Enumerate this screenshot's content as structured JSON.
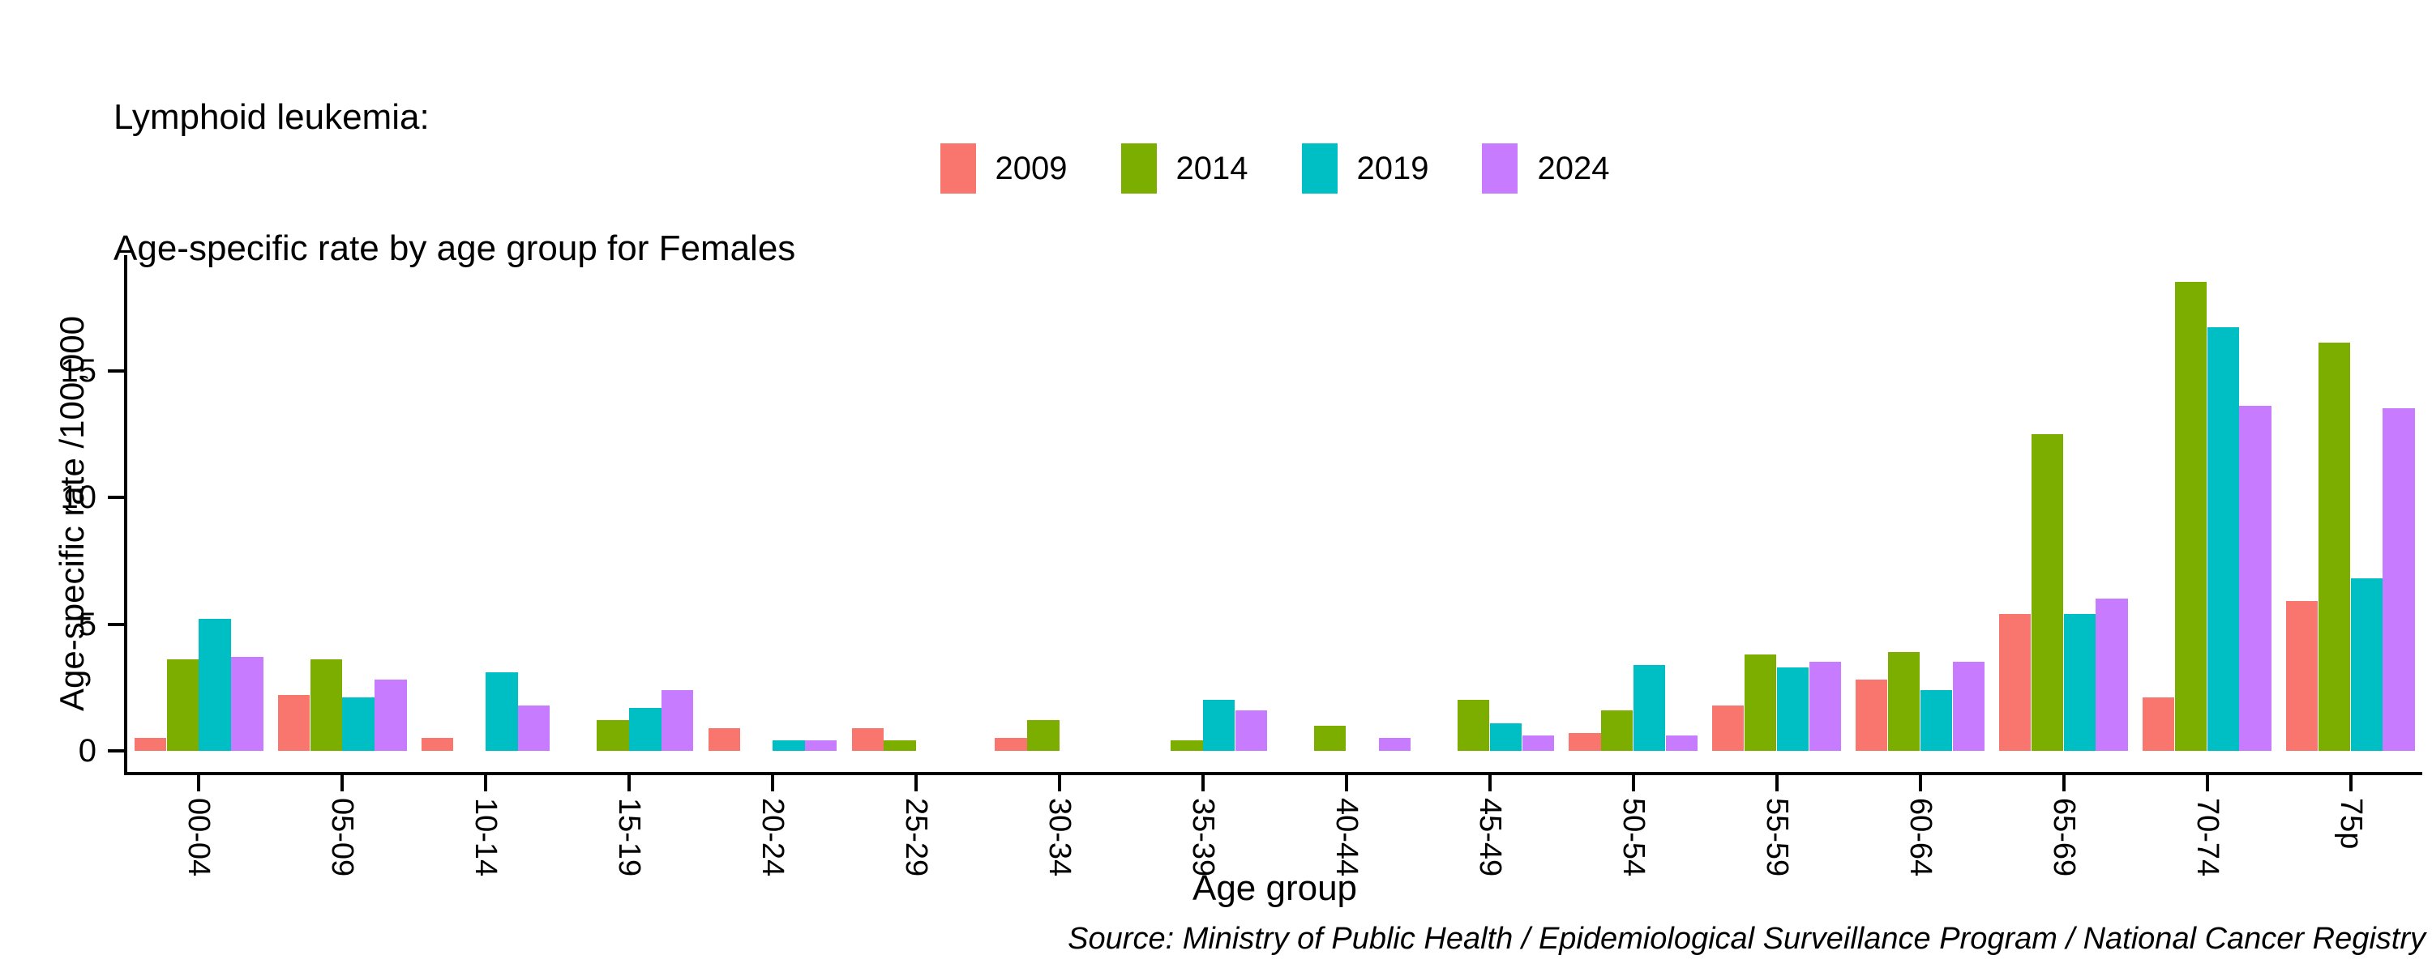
{
  "title": {
    "line1": "Lymphoid leukemia:",
    "line2": "Age-specific rate by age group for Females"
  },
  "axes": {
    "x_label": "Age group",
    "y_label": "Age-specific rate /100,000",
    "y_ticks": [
      0,
      5,
      10,
      15
    ]
  },
  "source": "Source: Ministry of Public Health / Epidemiological Surveillance Program / National Cancer Registry",
  "chart_data": {
    "type": "bar",
    "title": "Lymphoid leukemia: Age-specific rate by age group for Females",
    "xlabel": "Age group",
    "ylabel": "Age-specific rate /100,000",
    "ylim": [
      0,
      19.5
    ],
    "grid": false,
    "legend_position": "top",
    "categories": [
      "00-04",
      "05-09",
      "10-14",
      "15-19",
      "20-24",
      "25-29",
      "30-34",
      "35-39",
      "40-44",
      "45-49",
      "50-54",
      "55-59",
      "60-64",
      "65-69",
      "70-74",
      "75p"
    ],
    "series": [
      {
        "name": "2009",
        "color": "#F8766D",
        "values": [
          0.5,
          2.2,
          0.5,
          0,
          0.9,
          0.9,
          0.5,
          0,
          0,
          0,
          0.7,
          1.8,
          2.8,
          5.4,
          2.1,
          5.9
        ]
      },
      {
        "name": "2014",
        "color": "#7CAE00",
        "values": [
          3.6,
          3.6,
          0,
          1.2,
          0,
          0.4,
          1.2,
          0.4,
          1.0,
          2.0,
          1.6,
          3.8,
          3.9,
          12.5,
          18.5,
          16.1
        ]
      },
      {
        "name": "2019",
        "color": "#00BFC4",
        "values": [
          5.2,
          2.1,
          3.1,
          1.7,
          0.4,
          0,
          0,
          2.0,
          0,
          1.1,
          3.4,
          3.3,
          2.4,
          5.4,
          16.7,
          6.8
        ]
      },
      {
        "name": "2024",
        "color": "#C77CFF",
        "values": [
          3.7,
          2.8,
          1.8,
          2.4,
          0.4,
          0,
          0,
          1.6,
          0.5,
          0.6,
          0.6,
          3.5,
          3.5,
          6.0,
          13.6,
          13.5
        ]
      }
    ]
  }
}
